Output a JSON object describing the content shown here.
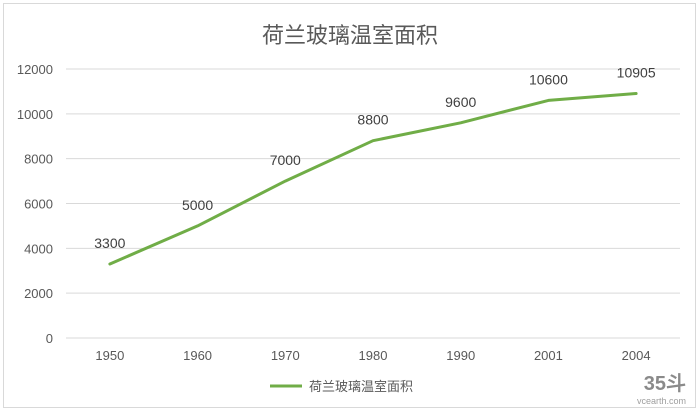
{
  "chart_data": {
    "type": "line",
    "title": "荷兰玻璃温室面积",
    "categories": [
      "1950",
      "1960",
      "1970",
      "1980",
      "1990",
      "2001",
      "2004"
    ],
    "series": [
      {
        "name": "荷兰玻璃温室面积",
        "values": [
          3300,
          5000,
          7000,
          8800,
          9600,
          10600,
          10905
        ],
        "color": "#70ad47"
      }
    ],
    "data_labels": [
      "3300",
      "5000",
      "7000",
      "8800",
      "9600",
      "10600",
      "10905"
    ],
    "y_ticks": [
      "0",
      "2000",
      "4000",
      "6000",
      "8000",
      "10000",
      "12000"
    ],
    "ylim": [
      0,
      12000
    ],
    "grid": true,
    "gridline_color": "#d9d9d9",
    "legend_position": "bottom"
  },
  "watermark": {
    "logo": "35斗",
    "site": "vcearth.com"
  }
}
